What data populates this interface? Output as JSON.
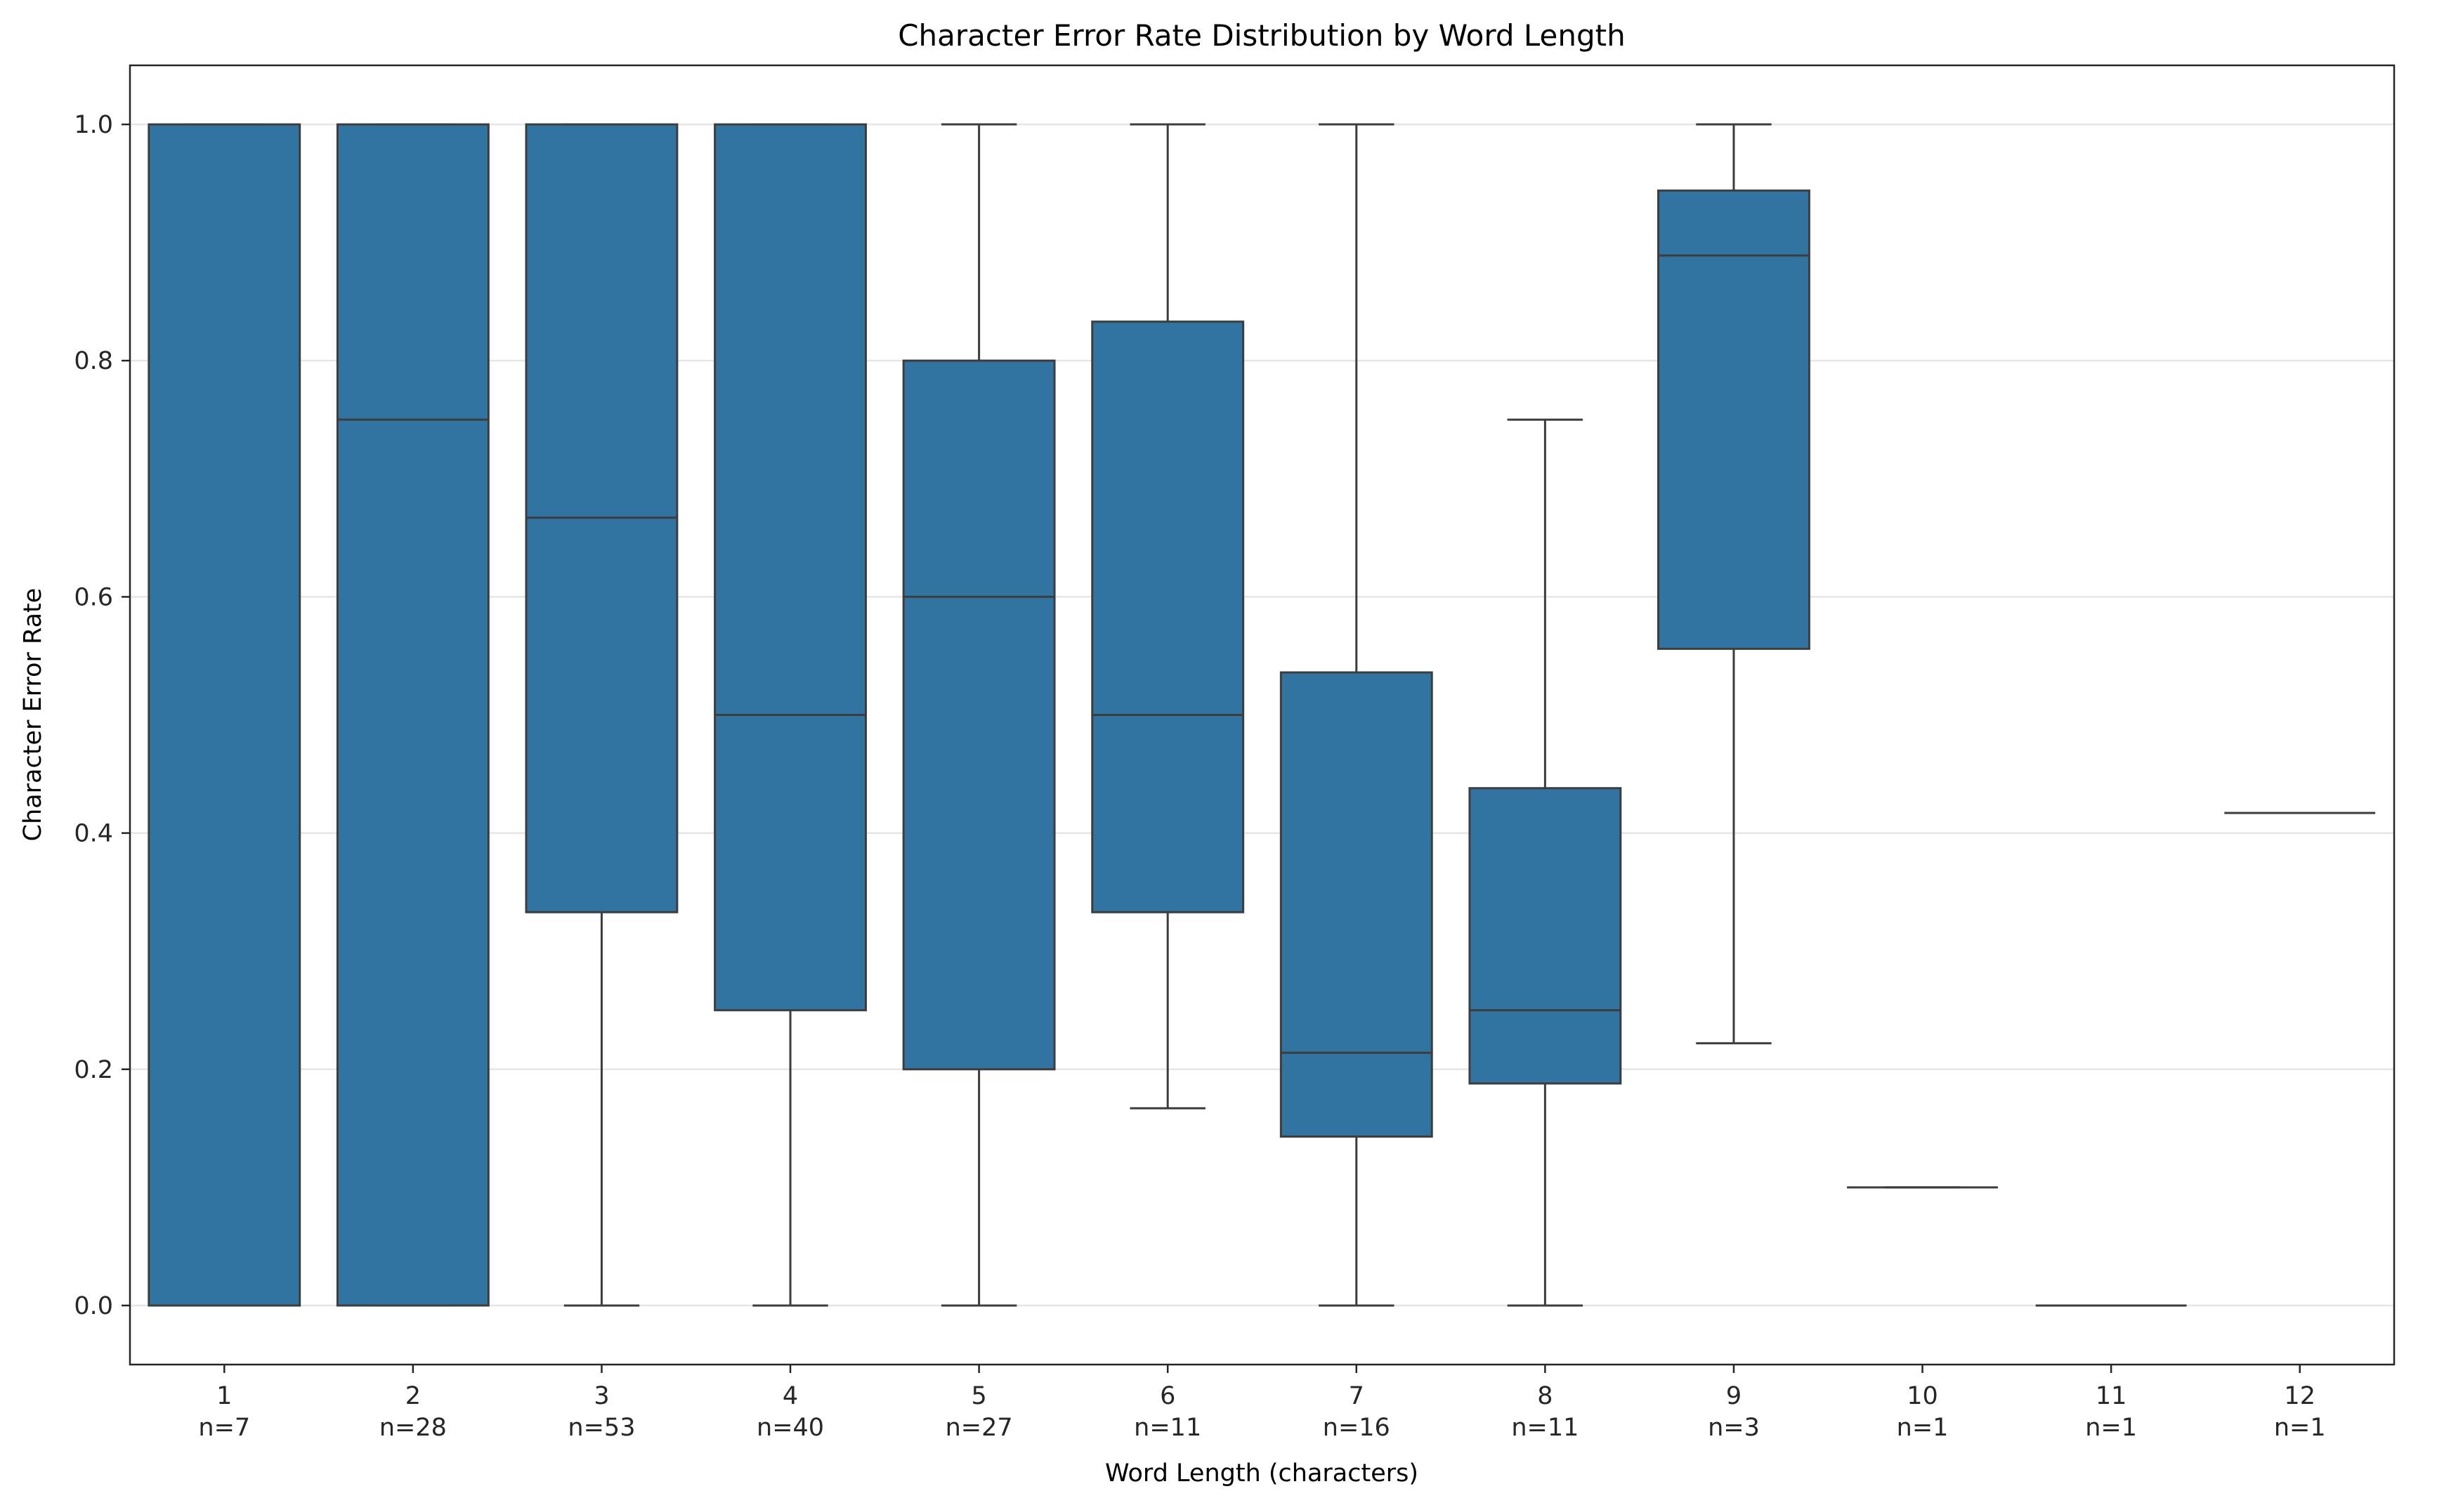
{
  "chart_data": {
    "type": "box",
    "title": "Character Error Rate Distribution by Word Length",
    "xlabel": "Word Length (characters)",
    "ylabel": "Character Error Rate",
    "ylim": [
      -0.05,
      1.05
    ],
    "yticks": [
      "0.0",
      "0.2",
      "0.4",
      "0.6",
      "0.8",
      "1.0"
    ],
    "grid": "horizontal",
    "box_color": "#3274a1",
    "line_color": "#3d3d3d",
    "grid_color": "#e6e6e6",
    "boxes": [
      {
        "label": "1",
        "count": "n=7",
        "whislo": 0.0,
        "q1": 0.0,
        "med": 0.0,
        "q3": 1.0,
        "whishi": 1.0
      },
      {
        "label": "2",
        "count": "n=28",
        "whislo": 0.0,
        "q1": 0.0,
        "med": 0.75,
        "q3": 1.0,
        "whishi": 1.0
      },
      {
        "label": "3",
        "count": "n=53",
        "whislo": 0.0,
        "q1": 0.333,
        "med": 0.667,
        "q3": 1.0,
        "whishi": 1.0
      },
      {
        "label": "4",
        "count": "n=40",
        "whislo": 0.0,
        "q1": 0.25,
        "med": 0.5,
        "q3": 1.0,
        "whishi": 1.0
      },
      {
        "label": "5",
        "count": "n=27",
        "whislo": 0.0,
        "q1": 0.2,
        "med": 0.6,
        "q3": 0.8,
        "whishi": 1.0
      },
      {
        "label": "6",
        "count": "n=11",
        "whislo": 0.167,
        "q1": 0.333,
        "med": 0.5,
        "q3": 0.833,
        "whishi": 1.0
      },
      {
        "label": "7",
        "count": "n=16",
        "whislo": 0.0,
        "q1": 0.143,
        "med": 0.214,
        "q3": 0.536,
        "whishi": 1.0
      },
      {
        "label": "8",
        "count": "n=11",
        "whislo": 0.0,
        "q1": 0.188,
        "med": 0.25,
        "q3": 0.438,
        "whishi": 0.75
      },
      {
        "label": "9",
        "count": "n=3",
        "whislo": 0.222,
        "q1": 0.556,
        "med": 0.889,
        "q3": 0.944,
        "whishi": 1.0
      },
      {
        "label": "10",
        "count": "n=1",
        "whislo": 0.1,
        "q1": 0.1,
        "med": 0.1,
        "q3": 0.1,
        "whishi": 0.1
      },
      {
        "label": "11",
        "count": "n=1",
        "whislo": 0.0,
        "q1": 0.0,
        "med": 0.0,
        "q3": 0.0,
        "whishi": 0.0
      },
      {
        "label": "12",
        "count": "n=1",
        "whislo": 0.417,
        "q1": 0.417,
        "med": 0.417,
        "q3": 0.417,
        "whishi": 0.417
      }
    ]
  }
}
